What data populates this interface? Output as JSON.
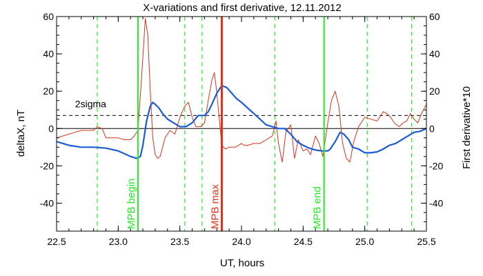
{
  "chart_data": {
    "type": "line",
    "title": "X-variations and first derivative, 12.11.2012",
    "xlabel": "UT, hours",
    "ylabel_left": "deltaX, nT",
    "ylabel_right": "First derivative*10",
    "xlim": [
      22.5,
      25.5
    ],
    "ylim": [
      -55,
      60
    ],
    "x_ticks": [
      "22.5",
      "23.0",
      "23.5",
      "24.0",
      "24.5",
      "25.0",
      "25.5"
    ],
    "y_ticks_left": [
      "60",
      "40",
      "20",
      "0",
      "-20",
      "-40"
    ],
    "y_ticks_right": [
      "60",
      "40",
      "20",
      "0",
      "-20",
      "-40"
    ],
    "grid": false,
    "colors": {
      "deltaX": "#1a5ad6",
      "derivative": "#d8301c",
      "green": "#22ee22",
      "red_marker": "#e03018",
      "sigma": "#000000"
    },
    "sigma_label": "2sigma",
    "sigma_level": 7,
    "vertical_markers": [
      {
        "x": 23.16,
        "label": "MPB begin",
        "color": "#22ee22",
        "style": "solid"
      },
      {
        "x": 23.84,
        "label": "MPB max",
        "color": "#e03018",
        "style": "solid"
      },
      {
        "x": 24.67,
        "label": "MPB end",
        "color": "#22ee22",
        "style": "solid"
      }
    ],
    "dashed_markers": [
      22.83,
      23.54,
      23.68,
      24.27,
      25.02,
      25.38
    ],
    "series": [
      {
        "key": "deltaX",
        "x": [
          22.5,
          22.6,
          22.7,
          22.8,
          22.9,
          23.0,
          23.05,
          23.1,
          23.15,
          23.18,
          23.2,
          23.23,
          23.26,
          23.28,
          23.3,
          23.33,
          23.36,
          23.4,
          23.45,
          23.5,
          23.55,
          23.6,
          23.65,
          23.7,
          23.73,
          23.76,
          23.8,
          23.84,
          23.88,
          23.92,
          23.96,
          24.0,
          24.05,
          24.1,
          24.15,
          24.2,
          24.25,
          24.3,
          24.35,
          24.4,
          24.45,
          24.5,
          24.55,
          24.6,
          24.65,
          24.7,
          24.72,
          24.76,
          24.8,
          24.83,
          24.87,
          24.9,
          24.95,
          25.0,
          25.05,
          25.1,
          25.15,
          25.2,
          25.25,
          25.3,
          25.35,
          25.4,
          25.45,
          25.5
        ],
        "y": [
          -7,
          -9,
          -10,
          -10,
          -10.5,
          -12,
          -13.5,
          -15,
          -16,
          -15,
          -9,
          4,
          12,
          14,
          13,
          11,
          8,
          5,
          3,
          1,
          1,
          3,
          7,
          7,
          9,
          13,
          19,
          23,
          22,
          19,
          16,
          14,
          11,
          8,
          5,
          2,
          1,
          0,
          0,
          -3,
          -7,
          -9,
          -10.5,
          -11.5,
          -12,
          -12,
          -11,
          -7,
          -2,
          -3,
          -6,
          -10,
          -11,
          -13,
          -13,
          -12.5,
          -11,
          -9,
          -8,
          -6,
          -4,
          -2,
          -1.5,
          0
        ]
      },
      {
        "key": "derivative",
        "x": [
          22.5,
          22.55,
          22.6,
          22.65,
          22.7,
          22.75,
          22.8,
          22.83,
          22.87,
          22.9,
          22.95,
          23.0,
          23.05,
          23.1,
          23.13,
          23.16,
          23.19,
          23.22,
          23.24,
          23.26,
          23.28,
          23.3,
          23.32,
          23.34,
          23.36,
          23.38,
          23.42,
          23.46,
          23.5,
          23.54,
          23.57,
          23.6,
          23.63,
          23.67,
          23.7,
          23.73,
          23.76,
          23.78,
          23.8,
          23.82,
          23.84,
          23.87,
          23.9,
          23.95,
          24.0,
          24.02,
          24.05,
          24.1,
          24.15,
          24.2,
          24.25,
          24.28,
          24.3,
          24.33,
          24.36,
          24.4,
          24.43,
          24.46,
          24.5,
          24.53,
          24.56,
          24.6,
          24.63,
          24.66,
          24.7,
          24.73,
          24.76,
          24.79,
          24.82,
          24.85,
          24.88,
          24.91,
          24.95,
          25.0,
          25.05,
          25.1,
          25.12,
          25.15,
          25.18,
          25.21,
          25.24,
          25.28,
          25.31,
          25.34,
          25.37,
          25.4,
          25.43,
          25.46,
          25.5
        ],
        "y": [
          -5,
          -4,
          -3,
          -2,
          -1,
          -1,
          -1,
          1,
          0,
          -5,
          -5,
          -5,
          -6,
          -6,
          -4,
          -1,
          28,
          59,
          50,
          20,
          -5,
          -14,
          -16,
          -15,
          -10,
          -5,
          -1,
          -3,
          6,
          12,
          14,
          6,
          1,
          1,
          3,
          15,
          26,
          30,
          19,
          5,
          -9,
          -11,
          -10,
          -10,
          -8,
          -9,
          -9,
          -8,
          -8,
          -6,
          -4,
          4,
          -8,
          -18,
          -2,
          2,
          -16,
          -6,
          -12,
          -11,
          -14,
          -4,
          -8,
          -15,
          3,
          15,
          20,
          12,
          -8,
          -16,
          -18,
          -7,
          1,
          6,
          5,
          4,
          6,
          9,
          8,
          6,
          3,
          1,
          3,
          4,
          8,
          5,
          3,
          8,
          13
        ]
      }
    ]
  }
}
